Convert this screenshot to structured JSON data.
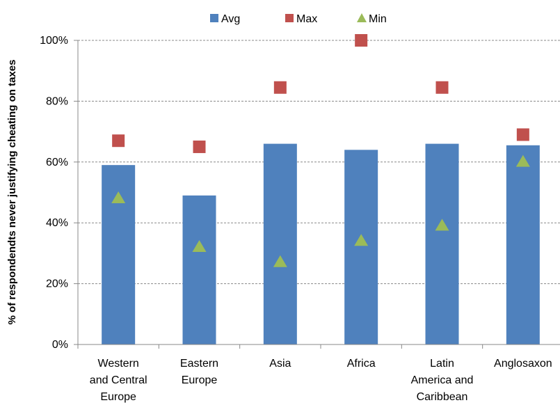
{
  "chart_data": {
    "type": "bar",
    "categories": [
      [
        "Western",
        "and Central",
        "Europe"
      ],
      [
        "Eastern",
        "Europe"
      ],
      [
        "Asia"
      ],
      [
        "Africa"
      ],
      [
        "Latin",
        "America and",
        "Caribbean"
      ],
      [
        "Anglosaxon"
      ]
    ],
    "series": [
      {
        "name": "Avg",
        "kind": "bar",
        "color": "#4f81bd",
        "values": [
          59,
          49,
          66,
          64,
          66,
          65.5
        ]
      },
      {
        "name": "Max",
        "kind": "square-marker",
        "color": "#c0504d",
        "values": [
          67,
          65,
          84.5,
          100,
          84.5,
          69
        ]
      },
      {
        "name": "Min",
        "kind": "triangle-marker",
        "color": "#9bbb59",
        "values": [
          48,
          32,
          27,
          34,
          39,
          60
        ]
      }
    ],
    "title": "",
    "xlabel": "",
    "ylabel": "% of respondendts never justifying cheating on taxes",
    "ylim": [
      0,
      100
    ],
    "yticks": [
      "0%",
      "20%",
      "40%",
      "60%",
      "80%",
      "100%"
    ],
    "grid": true,
    "legend_position": "top"
  }
}
